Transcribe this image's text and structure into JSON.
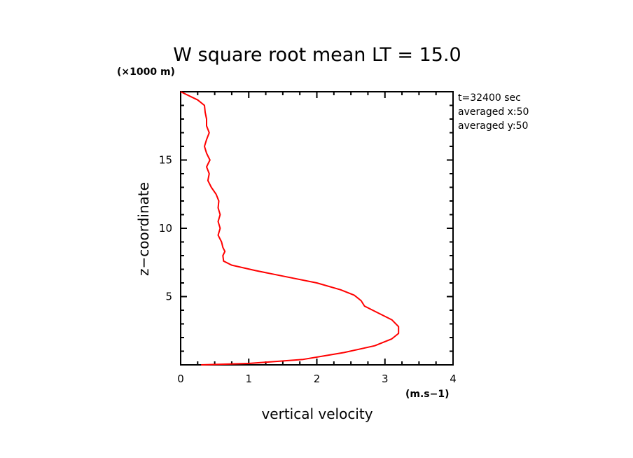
{
  "chart_data": {
    "type": "line",
    "title": "W square root mean LT = 15.0",
    "xlabel": "vertical velocity",
    "ylabel": "z−coordinate",
    "x_unit": "(m.s−1)",
    "y_unit": "(×1000 m)",
    "xlim": [
      0,
      4
    ],
    "ylim": [
      0,
      20
    ],
    "x_ticks": [
      0,
      1,
      2,
      3,
      4
    ],
    "y_ticks": [
      5,
      10,
      15
    ],
    "grid": false,
    "annotations": [
      "t=32400 sec",
      "averaged  x:50",
      "averaged  y:50"
    ],
    "series": [
      {
        "color": "#ff0000",
        "points": [
          [
            0.3,
            0.0
          ],
          [
            1.0,
            0.1
          ],
          [
            1.8,
            0.4
          ],
          [
            2.4,
            0.9
          ],
          [
            2.85,
            1.4
          ],
          [
            3.1,
            1.9
          ],
          [
            3.2,
            2.3
          ],
          [
            3.2,
            2.8
          ],
          [
            3.1,
            3.3
          ],
          [
            2.9,
            3.8
          ],
          [
            2.7,
            4.3
          ],
          [
            2.65,
            4.7
          ],
          [
            2.55,
            5.1
          ],
          [
            2.35,
            5.5
          ],
          [
            2.0,
            6.0
          ],
          [
            1.6,
            6.4
          ],
          [
            1.1,
            6.9
          ],
          [
            0.75,
            7.3
          ],
          [
            0.63,
            7.6
          ],
          [
            0.62,
            8.0
          ],
          [
            0.65,
            8.3
          ],
          [
            0.62,
            8.6
          ],
          [
            0.6,
            9.0
          ],
          [
            0.55,
            9.5
          ],
          [
            0.58,
            10.0
          ],
          [
            0.55,
            10.5
          ],
          [
            0.58,
            11.0
          ],
          [
            0.55,
            11.5
          ],
          [
            0.56,
            12.0
          ],
          [
            0.52,
            12.5
          ],
          [
            0.45,
            13.0
          ],
          [
            0.4,
            13.5
          ],
          [
            0.42,
            14.0
          ],
          [
            0.38,
            14.5
          ],
          [
            0.43,
            15.0
          ],
          [
            0.38,
            15.5
          ],
          [
            0.35,
            16.0
          ],
          [
            0.38,
            16.5
          ],
          [
            0.42,
            17.0
          ],
          [
            0.38,
            17.5
          ],
          [
            0.38,
            18.0
          ],
          [
            0.36,
            18.5
          ],
          [
            0.35,
            19.0
          ],
          [
            0.25,
            19.4
          ],
          [
            0.0,
            20.0
          ]
        ]
      }
    ]
  }
}
